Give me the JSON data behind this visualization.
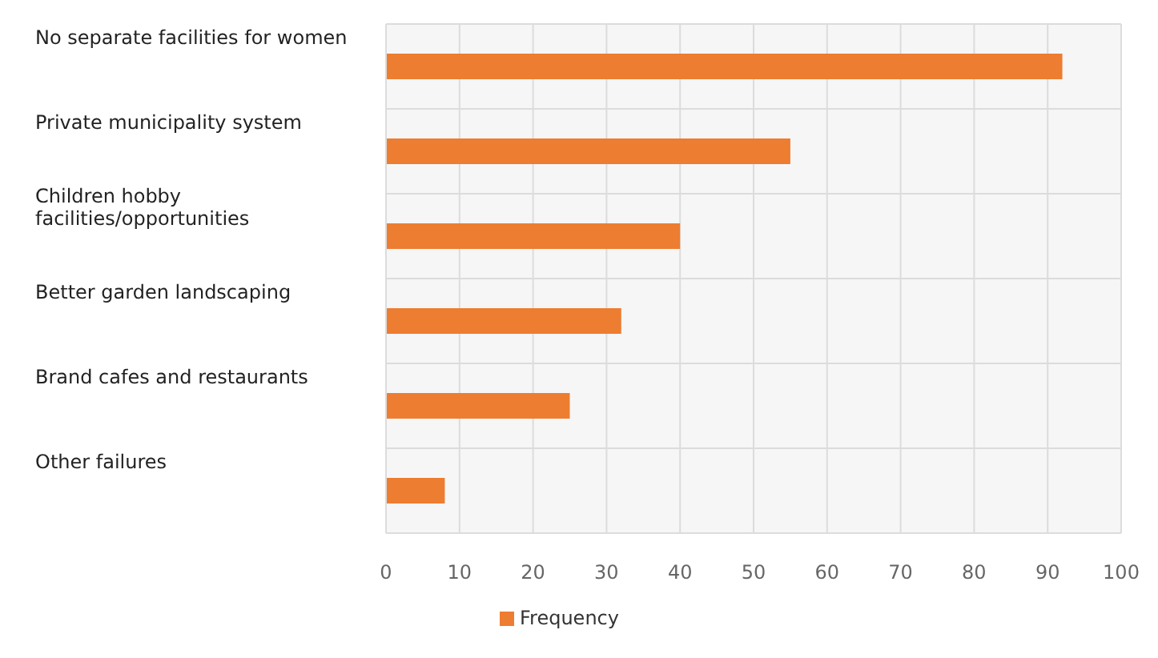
{
  "chart_data": {
    "type": "bar",
    "orientation": "horizontal",
    "categories": [
      "No separate facilities for women",
      "Private municipality system",
      "Children hobby facilities/opportunities",
      "Better garden landscaping",
      "Brand cafes and restaurants",
      "Other failures"
    ],
    "series": [
      {
        "name": "Frequency",
        "color": "#ed7d31",
        "values": [
          92,
          55,
          40,
          32,
          25,
          8
        ]
      }
    ],
    "xlim": [
      0,
      100
    ],
    "xticks": [
      0,
      10,
      20,
      30,
      40,
      50,
      60,
      70,
      80,
      90,
      100
    ],
    "grid": true,
    "legend": "bottom"
  }
}
